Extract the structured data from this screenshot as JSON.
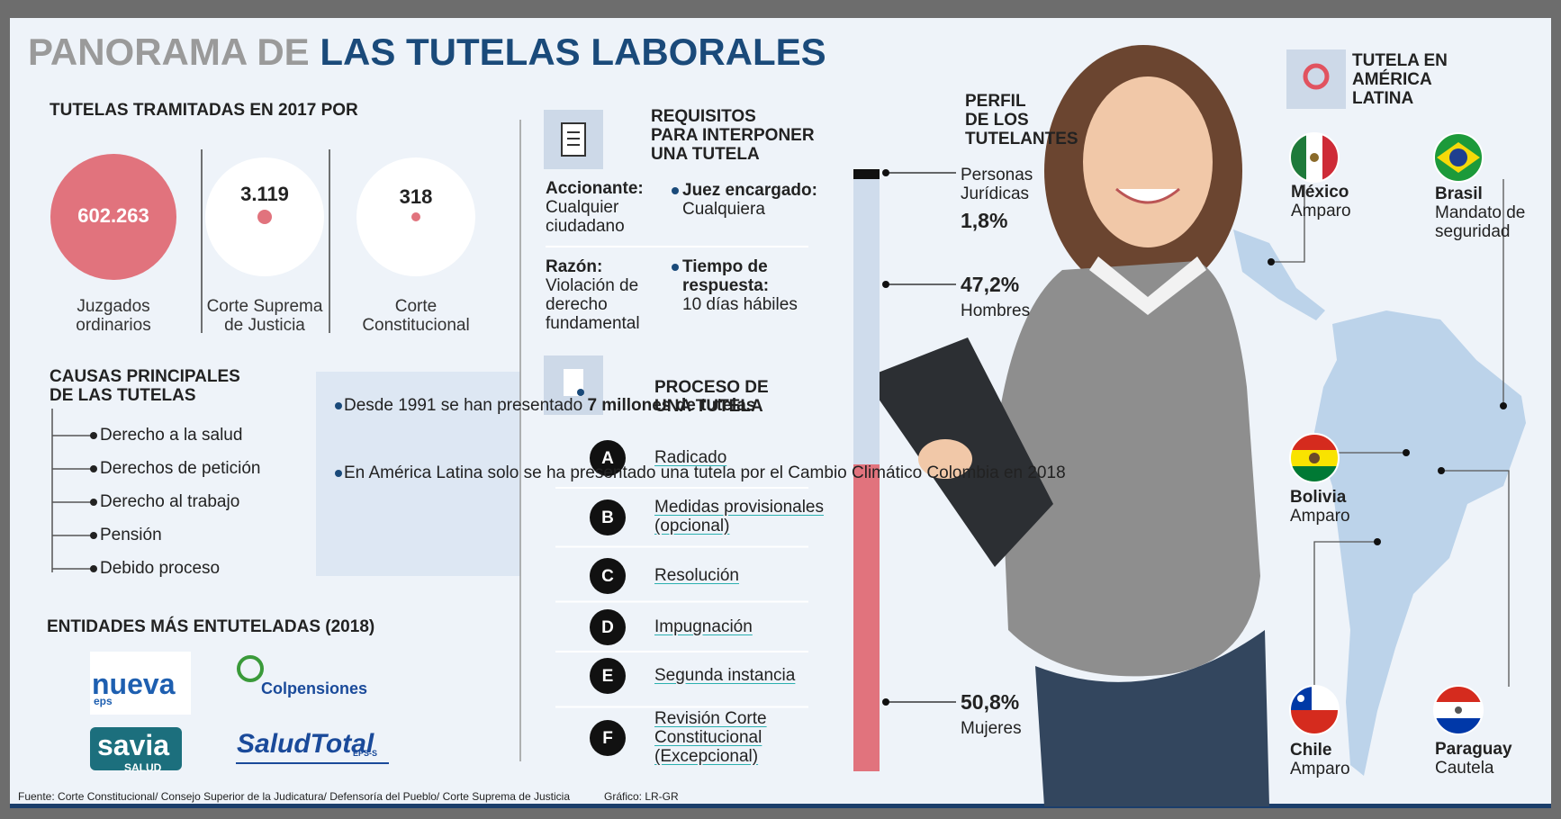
{
  "header": {
    "title_gray": "PANORAMA DE",
    "title_blue": "LAS TUTELAS LABORALES"
  },
  "filed_2017": {
    "title": "TUTELAS TRAMITADAS EN 2017 POR",
    "courts": [
      {
        "count": "602.263",
        "name_lines": [
          "Juzgados",
          "ordinarios"
        ]
      },
      {
        "count": "3.119",
        "name_lines": [
          "Corte Suprema",
          "de Justicia"
        ]
      },
      {
        "count": "318",
        "name_lines": [
          "Corte",
          "Constitucional"
        ]
      }
    ]
  },
  "causes": {
    "title_lines": [
      "CAUSAS PRINCIPALES",
      "DE LAS TUTELAS"
    ],
    "items": [
      "Derecho a la salud",
      "Derechos de petición",
      "Derecho al trabajo",
      "Pensión",
      "Debido proceso"
    ]
  },
  "facts": [
    {
      "text": "Desde 1991 se han presentado",
      "bold": "7 millones de tutelas"
    },
    {
      "text": "En América Latina solo se ha presentado una tutela por el Cambio Climático Colombia en 2018"
    }
  ],
  "entities": {
    "title": "ENTIDADES MÁS  ENTUTELADAS (2018)",
    "logos": [
      {
        "name": "nueva",
        "sub": "eps"
      },
      {
        "name": "Colpensiones"
      },
      {
        "name": "savia",
        "sub": "SALUD"
      },
      {
        "name": "SaludTotal",
        "sub": "EPS-S"
      }
    ]
  },
  "requirements": {
    "title_lines": [
      "REQUISITOS",
      "PARA INTERPONER",
      "UNA TUTELA"
    ],
    "items": [
      {
        "label": "Accionante:",
        "text": "Cualquier ciudadano"
      },
      {
        "label": "Juez encargado:",
        "text": "Cualquiera"
      },
      {
        "label": "Razón:",
        "text": "Violación de derecho fundamental"
      },
      {
        "label": "Tiempo de respuesta:",
        "text": "10 días hábiles"
      }
    ]
  },
  "process": {
    "title_lines": [
      "PROCESO DE",
      "UNA TUTELA"
    ],
    "steps": [
      {
        "letter": "A",
        "text": "Radicado"
      },
      {
        "letter": "B",
        "text": "Medidas provisionales (opcional)"
      },
      {
        "letter": "C",
        "text": "Resolución"
      },
      {
        "letter": "D",
        "text": "Impugnación"
      },
      {
        "letter": "E",
        "text": "Segunda instancia"
      },
      {
        "letter": "F",
        "text": "Revisión Corte Constitucional (Excepcional)"
      }
    ]
  },
  "profile": {
    "title_lines": [
      "PERFIL",
      "DE LOS",
      "TUTELANTES"
    ],
    "groups": [
      {
        "name": "Personas Jurídicas",
        "share": "1,8%"
      },
      {
        "name": "Hombres",
        "share": "47,2%"
      },
      {
        "name": "Mujeres",
        "share": "50,8%"
      }
    ]
  },
  "latam": {
    "title_lines": [
      "TUTELA EN",
      "AMÉRICA",
      "LATINA"
    ],
    "countries": [
      {
        "name": "México",
        "instrument": "Amparo"
      },
      {
        "name": "Brasil",
        "instrument": "Mandato de seguridad"
      },
      {
        "name": "Bolivia",
        "instrument": "Amparo"
      },
      {
        "name": "Chile",
        "instrument": "Amparo"
      },
      {
        "name": "Paraguay",
        "instrument": "Cautela"
      }
    ]
  },
  "footer": {
    "source": "Fuente: Corte Constitucional/ Consejo Superior de la Judicatura/ Defensoría del Pueblo/ Corte Suprema de Justicia",
    "credit": "Gráfico: LR-GR"
  }
}
